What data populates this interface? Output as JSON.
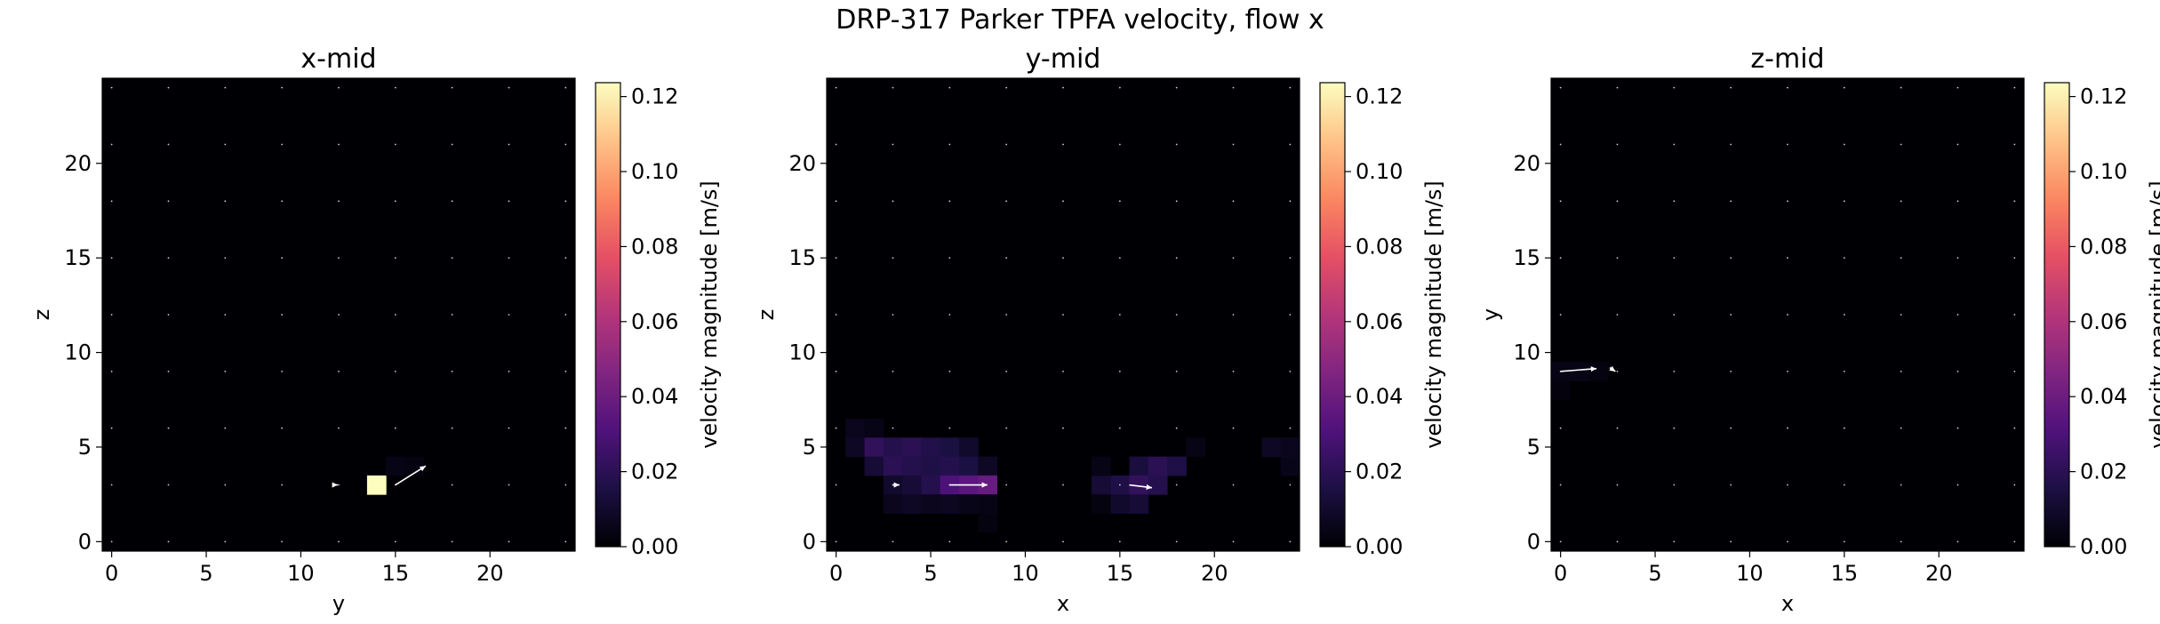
{
  "title": "DRP-317 Parker TPFA velocity, flow x",
  "colormap": [
    "#000004",
    "#1c1044",
    "#4f127b",
    "#812581",
    "#b5367a",
    "#e55064",
    "#fb8761",
    "#fec287",
    "#fcfdbf"
  ],
  "chart_data": [
    {
      "type": "heatmap",
      "title": "x-mid",
      "xlabel": "y",
      "ylabel": "z",
      "xlim": [
        -0.5,
        24.5
      ],
      "ylim": [
        -0.5,
        24.5
      ],
      "xticks": [
        0,
        5,
        10,
        15,
        20
      ],
      "yticks": [
        0,
        5,
        10,
        15,
        20
      ],
      "clim": [
        0,
        0.1237
      ],
      "colorbar_label": "velocity magnitude [m/s]",
      "colorbar_ticks": [
        "0.00",
        "0.02",
        "0.04",
        "0.06",
        "0.08",
        "0.10",
        "0.12"
      ],
      "grid_step": 3,
      "cells": [
        {
          "x": 14,
          "y": 3,
          "v": 0.1237
        },
        {
          "x": 15,
          "y": 4,
          "v": 0.004
        },
        {
          "x": 16,
          "y": 4,
          "v": 0.003
        }
      ],
      "vectors": [
        {
          "x": 15,
          "y": 3,
          "dx": 1.6,
          "dy": 1.0
        },
        {
          "x": 11.8,
          "y": 3,
          "dx": 0.15,
          "dy": 0.0
        }
      ]
    },
    {
      "type": "heatmap",
      "title": "y-mid",
      "xlabel": "x",
      "ylabel": "z",
      "xlim": [
        -0.5,
        24.5
      ],
      "ylim": [
        -0.5,
        24.5
      ],
      "xticks": [
        0,
        5,
        10,
        15,
        20
      ],
      "yticks": [
        0,
        5,
        10,
        15,
        20
      ],
      "clim": [
        0,
        0.1237
      ],
      "colorbar_label": "velocity magnitude [m/s]",
      "colorbar_ticks": [
        "0.00",
        "0.02",
        "0.04",
        "0.06",
        "0.08",
        "0.10",
        "0.12"
      ],
      "grid_step": 3,
      "cells": [
        {
          "x": 1,
          "y": 6,
          "v": 0.006
        },
        {
          "x": 2,
          "y": 6,
          "v": 0.004
        },
        {
          "x": 1,
          "y": 5,
          "v": 0.008
        },
        {
          "x": 2,
          "y": 5,
          "v": 0.022
        },
        {
          "x": 3,
          "y": 5,
          "v": 0.018
        },
        {
          "x": 4,
          "y": 5,
          "v": 0.02
        },
        {
          "x": 5,
          "y": 5,
          "v": 0.017
        },
        {
          "x": 6,
          "y": 5,
          "v": 0.015
        },
        {
          "x": 7,
          "y": 5,
          "v": 0.01
        },
        {
          "x": 2,
          "y": 4,
          "v": 0.012
        },
        {
          "x": 3,
          "y": 4,
          "v": 0.02
        },
        {
          "x": 4,
          "y": 4,
          "v": 0.018
        },
        {
          "x": 5,
          "y": 4,
          "v": 0.016
        },
        {
          "x": 6,
          "y": 4,
          "v": 0.018
        },
        {
          "x": 7,
          "y": 4,
          "v": 0.015
        },
        {
          "x": 8,
          "y": 4,
          "v": 0.008
        },
        {
          "x": 3,
          "y": 3,
          "v": 0.01
        },
        {
          "x": 4,
          "y": 3,
          "v": 0.012
        },
        {
          "x": 5,
          "y": 3,
          "v": 0.018
        },
        {
          "x": 6,
          "y": 3,
          "v": 0.03
        },
        {
          "x": 7,
          "y": 3,
          "v": 0.034
        },
        {
          "x": 8,
          "y": 3,
          "v": 0.038
        },
        {
          "x": 3,
          "y": 2,
          "v": 0.006
        },
        {
          "x": 4,
          "y": 2,
          "v": 0.008
        },
        {
          "x": 5,
          "y": 2,
          "v": 0.006
        },
        {
          "x": 6,
          "y": 2,
          "v": 0.007
        },
        {
          "x": 7,
          "y": 2,
          "v": 0.005
        },
        {
          "x": 8,
          "y": 2,
          "v": 0.004
        },
        {
          "x": 8,
          "y": 1,
          "v": 0.003
        },
        {
          "x": 16,
          "y": 4,
          "v": 0.014
        },
        {
          "x": 17,
          "y": 4,
          "v": 0.02
        },
        {
          "x": 18,
          "y": 4,
          "v": 0.016
        },
        {
          "x": 15,
          "y": 3,
          "v": 0.016
        },
        {
          "x": 16,
          "y": 3,
          "v": 0.022
        },
        {
          "x": 17,
          "y": 3,
          "v": 0.018
        },
        {
          "x": 15,
          "y": 2,
          "v": 0.01
        },
        {
          "x": 16,
          "y": 2,
          "v": 0.012
        },
        {
          "x": 14,
          "y": 3,
          "v": 0.012
        },
        {
          "x": 14,
          "y": 4,
          "v": 0.004
        },
        {
          "x": 14,
          "y": 2,
          "v": 0.003
        },
        {
          "x": 19,
          "y": 5,
          "v": 0.004
        },
        {
          "x": 23,
          "y": 5,
          "v": 0.008
        },
        {
          "x": 24,
          "y": 5,
          "v": 0.006
        },
        {
          "x": 24,
          "y": 4,
          "v": 0.005
        }
      ],
      "vectors": [
        {
          "x": 6,
          "y": 3,
          "dx": 2.0,
          "dy": 0.0
        },
        {
          "x": 15.5,
          "y": 3,
          "dx": 1.2,
          "dy": -0.15
        },
        {
          "x": 3,
          "y": 3,
          "dx": 0.35,
          "dy": 0.0
        }
      ]
    },
    {
      "type": "heatmap",
      "title": "z-mid",
      "xlabel": "x",
      "ylabel": "y",
      "xlim": [
        -0.5,
        24.5
      ],
      "ylim": [
        -0.5,
        24.5
      ],
      "xticks": [
        0,
        5,
        10,
        15,
        20
      ],
      "yticks": [
        0,
        5,
        10,
        15,
        20
      ],
      "clim": [
        0,
        0.1237
      ],
      "colorbar_label": "velocity magnitude [m/s]",
      "colorbar_ticks": [
        "0.00",
        "0.02",
        "0.04",
        "0.06",
        "0.08",
        "0.10",
        "0.12"
      ],
      "grid_step": 3,
      "cells": [
        {
          "x": 0,
          "y": 9,
          "v": 0.004
        },
        {
          "x": 1,
          "y": 9,
          "v": 0.004
        },
        {
          "x": 2,
          "y": 9,
          "v": 0.003
        },
        {
          "x": 0,
          "y": 8,
          "v": 0.002
        }
      ],
      "vectors": [
        {
          "x": 0,
          "y": 9,
          "dx": 1.9,
          "dy": 0.15
        },
        {
          "x": 2.6,
          "y": 9.2,
          "dx": 0.3,
          "dy": -0.2
        }
      ]
    }
  ]
}
